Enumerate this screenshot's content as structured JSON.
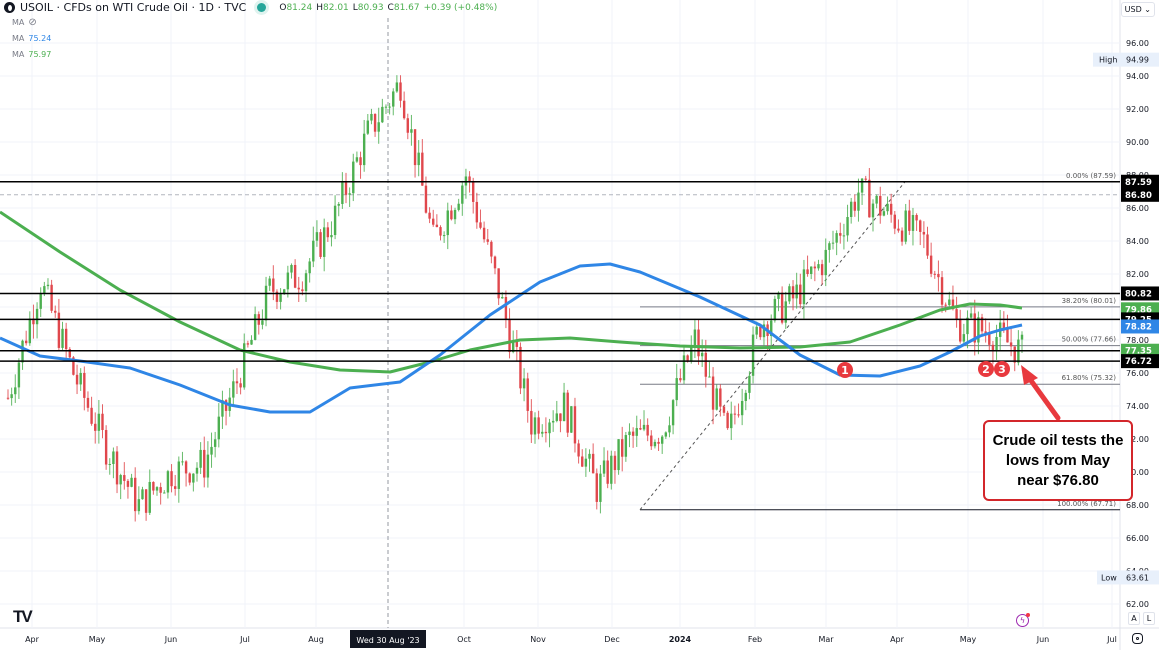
{
  "header": {
    "symbol": "USOIL",
    "title": "USOIL · CFDs on WTI Crude Oil · 1D · TVC",
    "ohlc": {
      "o_label": "O",
      "o": "81.24",
      "h_label": "H",
      "h": "82.01",
      "l_label": "L",
      "l": "80.93",
      "c_label": "C",
      "c": "81.67",
      "change": "+0.39 (+0.48%)"
    },
    "status_color": "#26a69a"
  },
  "indicators": [
    {
      "label": "MA",
      "value": "",
      "icon": "eye-hidden-icon"
    },
    {
      "label": "MA",
      "value": "75.24",
      "color": "#2f86e6"
    },
    {
      "label": "MA",
      "value": "75.97",
      "color": "#4caf50"
    }
  ],
  "currency_button": "USD ⌄",
  "price_axis": {
    "ticks": [
      "96.00",
      "94.00",
      "92.00",
      "90.00",
      "88.00",
      "86.00",
      "84.00",
      "82.00",
      "80.00",
      "78.00",
      "76.00",
      "74.00",
      "72.00",
      "70.00",
      "68.00",
      "66.00",
      "64.00",
      "62.00"
    ],
    "high_label": "High",
    "high_value": "94.99",
    "low_label": "Low",
    "low_value": "63.61",
    "tags": [
      {
        "value": "87.59",
        "bg": "#000000"
      },
      {
        "value": "86.80",
        "bg": "#000000"
      },
      {
        "value": "80.82",
        "bg": "#000000"
      },
      {
        "value": "79.86",
        "bg": "#4caf50"
      },
      {
        "value": "79.25",
        "bg": "#000000"
      },
      {
        "value": "78.82",
        "bg": "#2f86e6"
      },
      {
        "value": "77.35",
        "bg": "#4caf50"
      },
      {
        "value": "76.72",
        "bg": "#000000"
      }
    ],
    "auto_btn": "A",
    "log_btn": "L"
  },
  "time_axis": {
    "labels": [
      "Apr",
      "May",
      "Jun",
      "Jul",
      "Aug",
      "Oct",
      "Nov",
      "Dec",
      "2024",
      "Feb",
      "Mar",
      "Apr",
      "May",
      "Jun",
      "Jul"
    ],
    "crosshair_label": "Wed 30 Aug '23"
  },
  "fib_labels": {
    "f0": "0.00% (87.59)",
    "f382": "38.20% (80.01)",
    "f50": "50.00% (77.66)",
    "f618": "61.80% (75.32)",
    "f100": "100.00% (67.71)"
  },
  "markers": [
    "1",
    "2",
    "3"
  ],
  "annotation": {
    "text": "Crude oil tests the lows from May near $76.80",
    "line1": "Crude oil tests the",
    "line2": "lows from May",
    "line3": "near $76.80",
    "color": "#e8393e"
  },
  "logo": "TV",
  "chart_data": {
    "type": "candlestick",
    "title": "USOIL · CFDs on WTI Crude Oil · 1D · TVC",
    "xlabel": "",
    "ylabel": "USD",
    "ylim": [
      61.5,
      97
    ],
    "x_range": [
      "Mar 2023",
      "Jul 2024"
    ],
    "grid": true,
    "approx_close_path": {
      "dates": [
        "Apr 1 '23",
        "Apr 15",
        "May 1",
        "May 15",
        "Jun 1",
        "Jun 15",
        "Jul 1",
        "Jul 15",
        "Aug 1",
        "Aug 15",
        "Sep 1",
        "Sep 15",
        "Sep 27",
        "Oct 6",
        "Oct 20",
        "Nov 1",
        "Nov 15",
        "Dec 1",
        "Dec 12",
        "Jan 2 '24",
        "Jan 15",
        "Feb 1",
        "Feb 12",
        "Mar 1",
        "Mar 15",
        "Apr 1",
        "Apr 5",
        "Apr 12",
        "Apr 26",
        "May 1",
        "May 15",
        "May 22"
      ],
      "values": [
        74.5,
        81.5,
        76.0,
        71.5,
        68.0,
        70.0,
        70.5,
        75.5,
        81.0,
        82.0,
        85.5,
        90.5,
        93.6,
        84.0,
        88.0,
        81.0,
        73.0,
        74.0,
        69.0,
        72.0,
        72.5,
        78.0,
        72.0,
        79.0,
        80.5,
        83.0,
        87.0,
        85.5,
        84.0,
        79.0,
        78.5,
        77.3
      ]
    },
    "high": 94.99,
    "low": 63.61,
    "moving_averages": [
      {
        "name": "MA (blue)",
        "last": 78.82,
        "color": "#2f86e6"
      },
      {
        "name": "MA (green)",
        "last": 79.86,
        "color": "#4caf50"
      }
    ],
    "horizontal_levels": [
      87.59,
      80.82,
      79.25,
      77.35,
      76.72
    ],
    "dashed_level": 86.8,
    "fibonacci": {
      "from": 67.71,
      "to": 87.59,
      "levels": [
        {
          "pct": "0.00%",
          "price": 87.59
        },
        {
          "pct": "38.20%",
          "price": 80.01
        },
        {
          "pct": "50.00%",
          "price": 77.66
        },
        {
          "pct": "61.80%",
          "price": 75.32
        },
        {
          "pct": "100.00%",
          "price": 67.71
        }
      ]
    },
    "annotations": [
      "Crude oil tests the lows from May near $76.80",
      "Markers 1, 2, 3 at support ~76.72"
    ]
  }
}
